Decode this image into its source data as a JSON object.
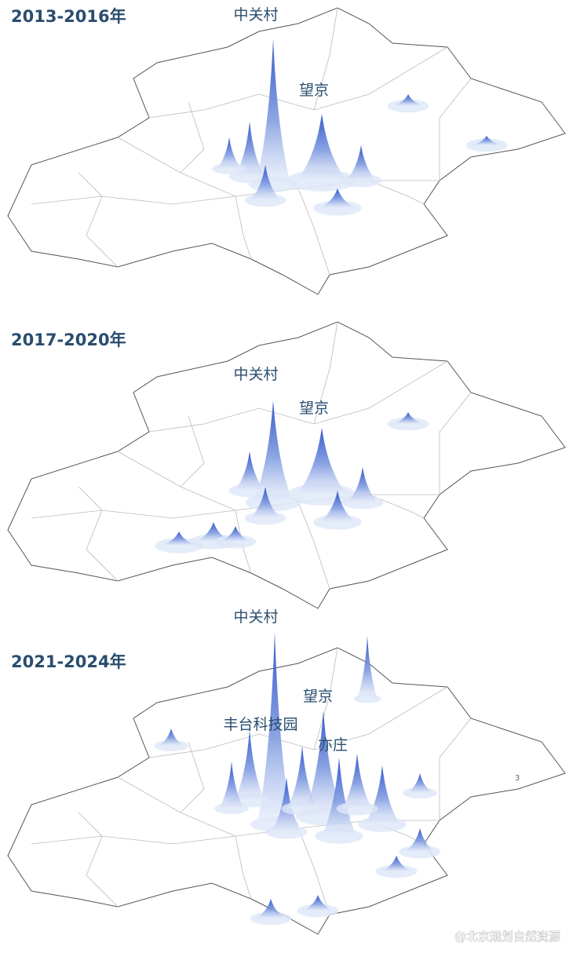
{
  "panels": [
    {
      "title": "2013-2016年",
      "labels": [
        "中关村",
        "望京"
      ]
    },
    {
      "title": "2017-2020年",
      "labels": [
        "中关村",
        "望京"
      ]
    },
    {
      "title": "2021-2024年",
      "labels": [
        "中关村",
        "望京",
        "丰台科技园",
        "亦庄"
      ]
    }
  ],
  "page_marker": "3",
  "watermark": "@北京规划自然资源"
}
